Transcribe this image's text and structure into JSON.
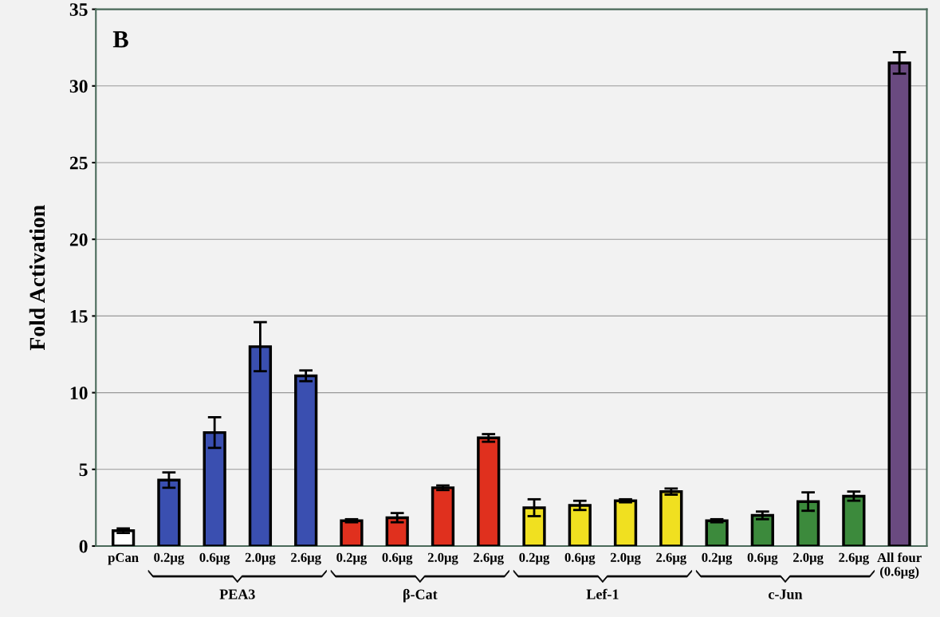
{
  "chart_data": {
    "type": "bar",
    "ylabel": "Fold Activation",
    "categories": [
      "pCan",
      "0.2μg",
      "0.6μg",
      "2.0μg",
      "2.6μg",
      "0.2μg",
      "0.6μg",
      "2.0μg",
      "2.6μg",
      "0.2μg",
      "0.6μg",
      "2.0μg",
      "2.6μg",
      "0.2μg",
      "0.6μg",
      "2.0μg",
      "2.6μg",
      "All four\n(0.6μg)"
    ],
    "values": [
      1.0,
      4.3,
      7.4,
      13.0,
      11.1,
      1.65,
      1.85,
      3.8,
      7.05,
      2.5,
      2.65,
      2.95,
      3.55,
      1.65,
      2.0,
      2.9,
      3.25,
      31.5
    ],
    "errors": [
      0.15,
      0.5,
      1.0,
      1.6,
      0.35,
      0.1,
      0.3,
      0.15,
      0.25,
      0.55,
      0.3,
      0.1,
      0.2,
      0.1,
      0.25,
      0.6,
      0.3,
      0.7
    ],
    "colors": [
      "#ffffff",
      "#3a4fb0",
      "#3a4fb0",
      "#3a4fb0",
      "#3a4fb0",
      "#e0301e",
      "#e0301e",
      "#e0301e",
      "#e0301e",
      "#f0e020",
      "#f0e020",
      "#f0e020",
      "#f0e020",
      "#3c8a3c",
      "#3c8a3c",
      "#3c8a3c",
      "#3c8a3c",
      "#6a4a80"
    ],
    "ylim": [
      0,
      35
    ],
    "yticks": [
      0,
      5,
      10,
      15,
      20,
      25,
      30,
      35
    ],
    "grid": "y",
    "annotations": [
      "B",
      "PEA3",
      "β-Cat",
      "Lef-1",
      "c-Jun"
    ]
  }
}
